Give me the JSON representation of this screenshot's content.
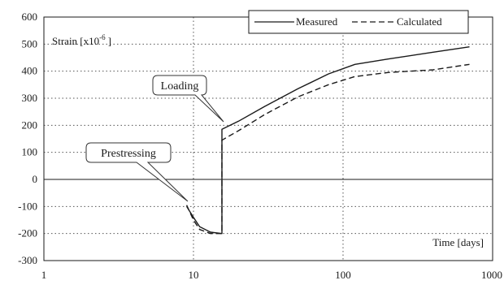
{
  "chart_data": {
    "type": "line",
    "x_scale": "log",
    "xlim": [
      1,
      1000
    ],
    "ylim": [
      -300,
      600
    ],
    "x_ticks": [
      1,
      10,
      100,
      1000
    ],
    "y_ticks": [
      -300,
      -200,
      -100,
      0,
      100,
      200,
      300,
      400,
      500,
      600
    ],
    "x_tick_labels": [
      "1",
      "10",
      "100",
      "1000"
    ],
    "y_tick_labels": [
      "-300",
      "-200",
      "-100",
      "0",
      "100",
      "200",
      "300",
      "400",
      "500",
      "600"
    ],
    "xlabel": "Time [days]",
    "ylabel_main": "Strain [x10",
    "ylabel_exp": "-6",
    "ylabel_end": "]",
    "grid": "dotted",
    "legend_position": "top-right",
    "series": [
      {
        "name": "Measured",
        "style": "solid",
        "color": "#1a1a1a",
        "x": [
          9,
          10,
          11,
          13,
          15.5,
          15.5,
          20,
          30,
          50,
          80,
          120,
          200,
          400,
          700
        ],
        "y": [
          -100,
          -140,
          -175,
          -195,
          -200,
          185,
          215,
          270,
          335,
          390,
          425,
          445,
          470,
          490
        ]
      },
      {
        "name": "Calculated",
        "style": "dashed",
        "color": "#1a1a1a",
        "x": [
          9,
          10,
          11,
          13,
          15.5,
          15.5,
          20,
          30,
          50,
          80,
          120,
          200,
          400,
          700
        ],
        "y": [
          -95,
          -150,
          -185,
          -200,
          -200,
          145,
          180,
          240,
          305,
          350,
          380,
          395,
          405,
          425
        ]
      }
    ],
    "annotations": [
      {
        "text": "Loading",
        "target_x": 15.5,
        "target_y": 185
      },
      {
        "text": "Prestressing",
        "target_x": 9.5,
        "target_y": -110
      }
    ]
  }
}
